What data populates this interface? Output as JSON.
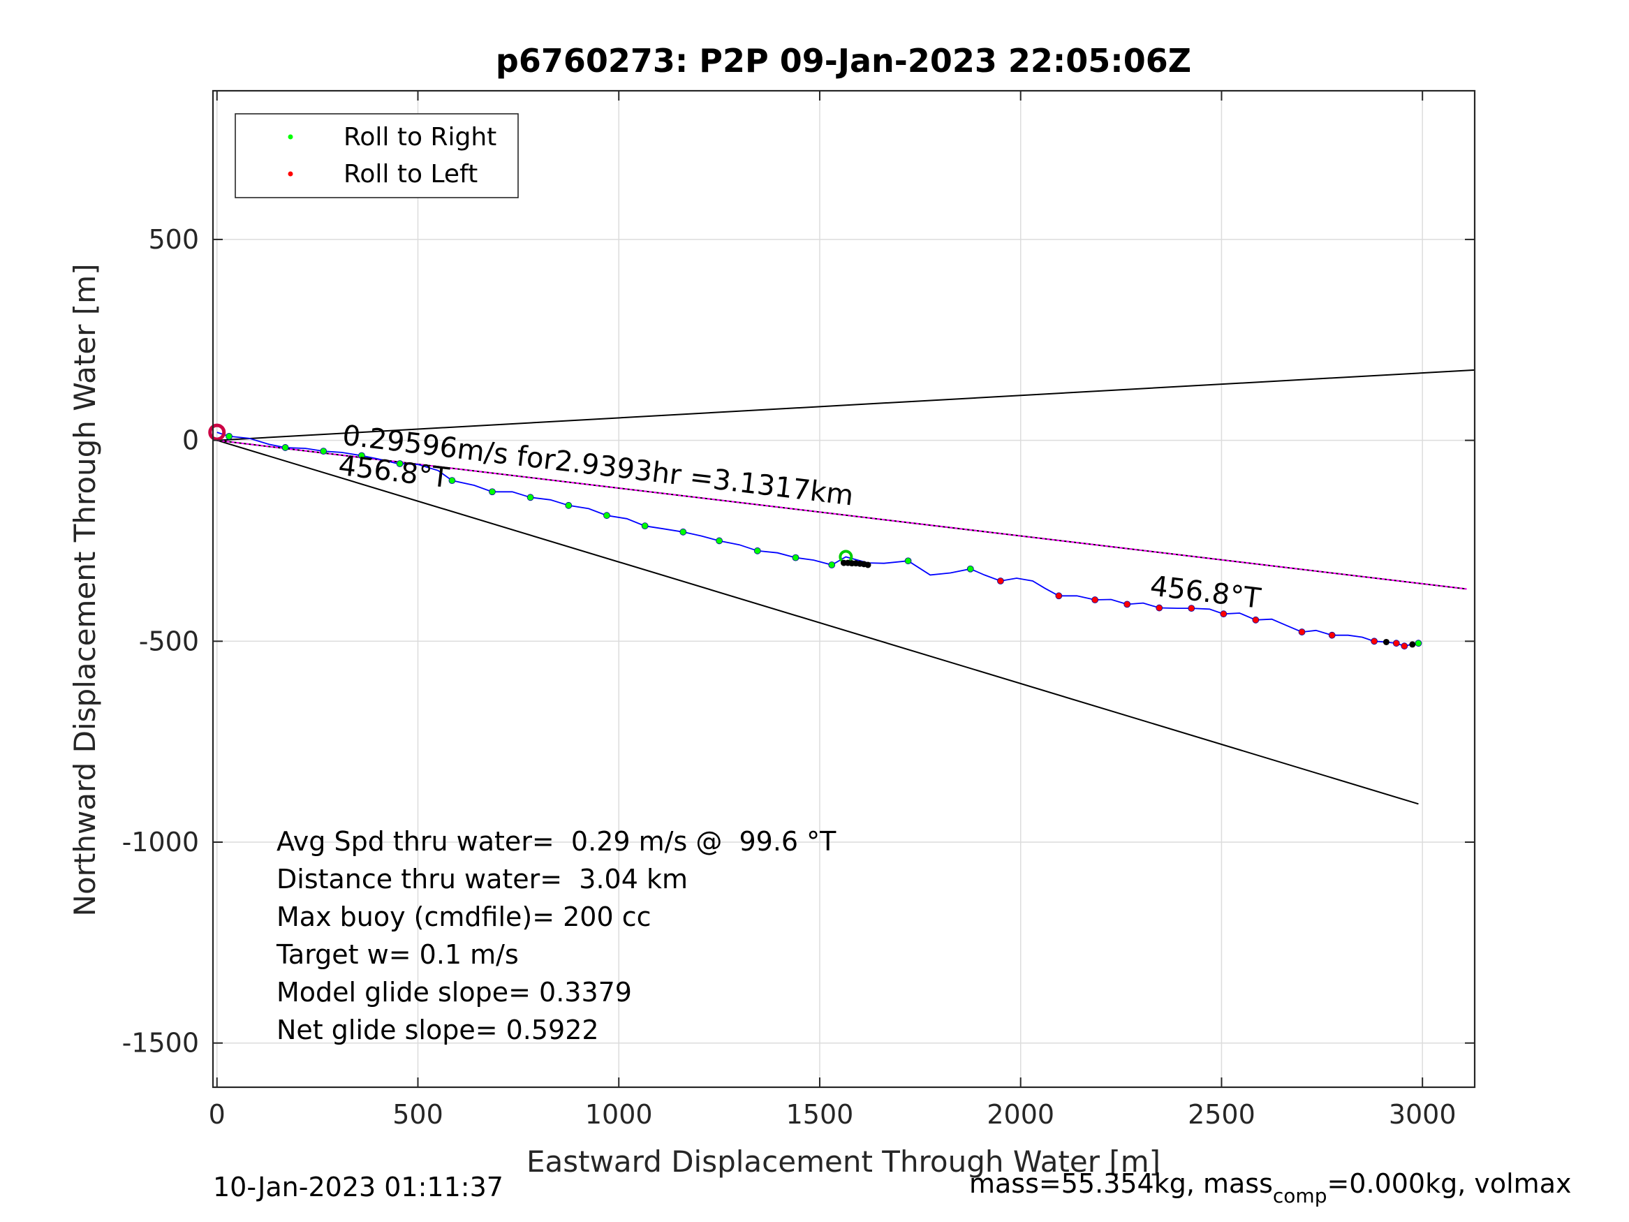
{
  "chart_data": {
    "type": "line",
    "title": "p6760273: P2P 09-Jan-2023 22:05:06Z",
    "xlabel": "Eastward Displacement Through Water [m]",
    "ylabel": "Northward Displacement Through Water [m]",
    "xlim": [
      -10,
      3130
    ],
    "ylim": [
      -1610,
      870
    ],
    "xticks": [
      0,
      500,
      1000,
      1500,
      2000,
      2500,
      3000
    ],
    "xtick_labels": [
      "0",
      "500",
      "1000",
      "1500",
      "2000",
      "2500",
      "3000"
    ],
    "yticks": [
      500,
      0,
      -500,
      -1000,
      -1500
    ],
    "ytick_labels": [
      "500",
      "0",
      "-500",
      "-1000",
      "-1500"
    ],
    "grid": true,
    "legend": {
      "placement": "top-left",
      "entries": [
        {
          "label": "Roll to Right",
          "color": "#00ff00"
        },
        {
          "label": "Roll to Left",
          "color": "#ff0000"
        }
      ]
    },
    "colors": {
      "track": "#0000ff",
      "roll_right": "#00ff00",
      "roll_left": "#ff0000",
      "heading_lines": "#000000",
      "mean_line": "#ff00ff",
      "grid": "#dcdcdc",
      "axes": "#262626"
    },
    "track": [
      [
        0,
        20
      ],
      [
        30,
        10
      ],
      [
        80,
        5
      ],
      [
        130,
        -10
      ],
      [
        170,
        -18
      ],
      [
        220,
        -20
      ],
      [
        265,
        -27
      ],
      [
        310,
        -30
      ],
      [
        360,
        -38
      ],
      [
        400,
        -46
      ],
      [
        450,
        -58
      ],
      [
        500,
        -60
      ],
      [
        550,
        -75
      ],
      [
        585,
        -100
      ],
      [
        640,
        -112
      ],
      [
        685,
        -128
      ],
      [
        735,
        -128
      ],
      [
        780,
        -142
      ],
      [
        830,
        -148
      ],
      [
        875,
        -162
      ],
      [
        925,
        -170
      ],
      [
        970,
        -187
      ],
      [
        1020,
        -195
      ],
      [
        1065,
        -213
      ],
      [
        1110,
        -220
      ],
      [
        1160,
        -228
      ],
      [
        1205,
        -238
      ],
      [
        1250,
        -250
      ],
      [
        1300,
        -260
      ],
      [
        1345,
        -275
      ],
      [
        1395,
        -280
      ],
      [
        1440,
        -292
      ],
      [
        1485,
        -298
      ],
      [
        1530,
        -310
      ],
      [
        1565,
        -290
      ],
      [
        1620,
        -305
      ],
      [
        1660,
        -306
      ],
      [
        1720,
        -300
      ],
      [
        1775,
        -335
      ],
      [
        1825,
        -330
      ],
      [
        1875,
        -320
      ],
      [
        1910,
        -335
      ],
      [
        1950,
        -350
      ],
      [
        1990,
        -343
      ],
      [
        2030,
        -350
      ],
      [
        2060,
        -368
      ],
      [
        2095,
        -387
      ],
      [
        2140,
        -387
      ],
      [
        2185,
        -397
      ],
      [
        2225,
        -396
      ],
      [
        2265,
        -408
      ],
      [
        2305,
        -405
      ],
      [
        2345,
        -417
      ],
      [
        2390,
        -418
      ],
      [
        2425,
        -418
      ],
      [
        2470,
        -420
      ],
      [
        2505,
        -432
      ],
      [
        2545,
        -430
      ],
      [
        2585,
        -447
      ],
      [
        2625,
        -445
      ],
      [
        2660,
        -460
      ],
      [
        2700,
        -477
      ],
      [
        2735,
        -473
      ],
      [
        2775,
        -485
      ],
      [
        2815,
        -485
      ],
      [
        2850,
        -490
      ],
      [
        2880,
        -500
      ],
      [
        2910,
        -502
      ],
      [
        2935,
        -505
      ],
      [
        2955,
        -512
      ],
      [
        2985,
        -505
      ]
    ],
    "roll_right_points": [
      [
        30,
        10
      ],
      [
        170,
        -18
      ],
      [
        265,
        -27
      ],
      [
        360,
        -38
      ],
      [
        455,
        -58
      ],
      [
        585,
        -100
      ],
      [
        685,
        -128
      ],
      [
        780,
        -142
      ],
      [
        875,
        -162
      ],
      [
        970,
        -187
      ],
      [
        1065,
        -213
      ],
      [
        1160,
        -228
      ],
      [
        1250,
        -250
      ],
      [
        1345,
        -275
      ],
      [
        1440,
        -292
      ],
      [
        1530,
        -310
      ],
      [
        1720,
        -300
      ],
      [
        1875,
        -320
      ],
      [
        2990,
        -505
      ]
    ],
    "roll_left_points": [
      [
        1950,
        -350
      ],
      [
        2095,
        -387
      ],
      [
        2185,
        -397
      ],
      [
        2265,
        -408
      ],
      [
        2345,
        -417
      ],
      [
        2425,
        -418
      ],
      [
        2505,
        -432
      ],
      [
        2585,
        -447
      ],
      [
        2700,
        -477
      ],
      [
        2775,
        -485
      ],
      [
        2880,
        -500
      ],
      [
        2935,
        -505
      ],
      [
        2955,
        -512
      ]
    ],
    "black_points": [
      [
        1560,
        -305
      ],
      [
        1570,
        -305
      ],
      [
        1580,
        -306
      ],
      [
        1590,
        -306
      ],
      [
        1600,
        -307
      ],
      [
        1610,
        -308
      ],
      [
        1620,
        -310
      ],
      [
        2910,
        -502
      ],
      [
        2975,
        -508
      ]
    ],
    "start_marker": [
      0,
      20
    ],
    "segment_end_marker": [
      1565,
      -290
    ],
    "heading_lines": [
      {
        "from": [
          0,
          0
        ],
        "to": [
          3130,
          175
        ]
      },
      {
        "from": [
          0,
          0
        ],
        "to": [
          3110,
          -370
        ]
      },
      {
        "from": [
          0,
          0
        ],
        "to": [
          2990,
          -905
        ]
      }
    ],
    "mean_line": {
      "from": [
        0,
        0
      ],
      "to": [
        3110,
        -370
      ]
    },
    "annotations": [
      {
        "text": "0.29596m/s for2.9393hr =3.1317km",
        "x": 310,
        "y": -10,
        "angle": 6.8
      },
      {
        "text": "456.8°T",
        "x": 300,
        "y": -85,
        "angle": 6.8
      },
      {
        "text": "456.8°T",
        "x": 2320,
        "y": -385,
        "angle": 6.8
      }
    ],
    "stats_lines": [
      "Avg Spd thru water=  0.29 m/s @  99.6 °T",
      "Distance thru water=  3.04 km",
      "Max buoy (cmdfile)= 200 cc",
      "Target w= 0.1 m/s",
      "Model glide slope= 0.3379",
      "Net glide slope= 0.5922"
    ]
  },
  "footer": {
    "timestamp": "10-Jan-2023 01:11:37",
    "mass_prefix": "mass=55.354kg, mass",
    "mass_sub": "comp",
    "mass_suffix": "=0.000kg, volmax"
  }
}
